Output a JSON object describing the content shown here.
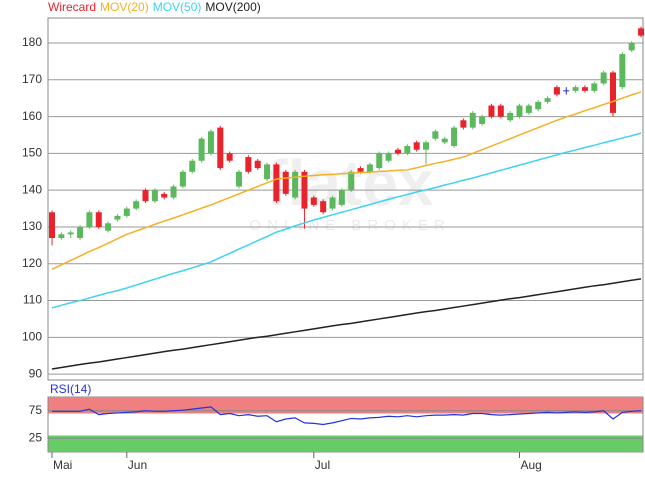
{
  "chart_data": [
    {
      "type": "candlestick",
      "categories": [
        "Mai",
        null,
        null,
        null,
        null,
        null,
        null,
        null,
        "Jun",
        null,
        null,
        null,
        null,
        null,
        null,
        null,
        null,
        null,
        null,
        null,
        null,
        null,
        null,
        null,
        null,
        null,
        null,
        null,
        "Jul",
        null,
        null,
        null,
        null,
        null,
        null,
        null,
        null,
        null,
        null,
        null,
        null,
        null,
        null,
        null,
        null,
        null,
        null,
        null,
        null,
        null,
        "Aug",
        null,
        null,
        null,
        null,
        null,
        null,
        null,
        null,
        null,
        null,
        null,
        null,
        null
      ],
      "series": [
        {
          "name": "Wirecard",
          "type": "candlestick",
          "up_color": "#5cb85c",
          "down_color": "#e8232b",
          "doji_color": "#2a2ad0",
          "open": [
            134,
            127,
            128,
            127,
            130,
            134,
            129,
            132,
            133,
            135,
            140,
            137,
            139,
            138,
            141,
            145,
            148,
            150,
            157,
            150,
            141,
            149,
            148,
            143,
            147,
            145,
            138,
            145,
            138,
            137,
            135,
            136,
            140,
            146,
            145,
            146,
            148,
            151,
            150,
            153,
            151,
            154,
            153,
            152,
            159,
            157,
            158,
            163,
            163,
            159,
            160,
            161,
            162,
            164,
            168,
            167,
            167,
            168,
            167,
            169,
            172,
            168,
            178,
            184
          ],
          "high": [
            134.5,
            128.5,
            129,
            130.5,
            134.5,
            134.5,
            131.5,
            133.5,
            135.5,
            137.5,
            140.5,
            140.5,
            139.5,
            141.5,
            145.5,
            148.5,
            154.5,
            156.5,
            157.5,
            150.5,
            145.5,
            149.5,
            148.5,
            147.5,
            147.5,
            145.5,
            145.5,
            145.5,
            138.5,
            137.5,
            138.5,
            140.5,
            145.5,
            146.5,
            147.5,
            150.5,
            150.5,
            151.5,
            152.5,
            153.5,
            153.5,
            156.5,
            154.5,
            157.5,
            159.5,
            161.5,
            160.5,
            163.5,
            163.5,
            161.5,
            163.5,
            163.5,
            164.5,
            165.5,
            168.5,
            168,
            168.5,
            168.5,
            169.5,
            172.5,
            172.5,
            177.5,
            180.5,
            184.5
          ],
          "low": [
            125,
            126.5,
            127,
            126.5,
            129.5,
            129.5,
            128.5,
            131.5,
            132.5,
            134.5,
            136.5,
            136.5,
            137.5,
            137.5,
            140.5,
            144.5,
            147.5,
            149.5,
            145.5,
            147.5,
            140.5,
            144.5,
            145.5,
            142.5,
            136.5,
            138.5,
            137.5,
            129.5,
            135.5,
            133.5,
            134.5,
            135.5,
            139.5,
            144.5,
            144.5,
            145.5,
            147.5,
            149.5,
            149.5,
            150.5,
            147,
            153.5,
            152.5,
            151.5,
            156.5,
            156.5,
            157.5,
            159.5,
            159.5,
            158.5,
            159.5,
            160.5,
            161.5,
            163.5,
            165.5,
            166,
            166.5,
            166.5,
            166.5,
            168.5,
            160,
            167.5,
            177.5,
            181.5
          ],
          "close": [
            127,
            128,
            128.5,
            130,
            134,
            130,
            131,
            133,
            135,
            137,
            137,
            140,
            138,
            141,
            145,
            148,
            154,
            156,
            146,
            148,
            145,
            145,
            146,
            147,
            137,
            139,
            145,
            135,
            136,
            134,
            138,
            140,
            145,
            145,
            147,
            150,
            150,
            150,
            152,
            151,
            153,
            156,
            154,
            157,
            157,
            161,
            160,
            160,
            160,
            161,
            163,
            163,
            164,
            165,
            166,
            167,
            168,
            167,
            169,
            172,
            161,
            177,
            180,
            182
          ]
        },
        {
          "name": "MOV(20)",
          "color": "#f5b027",
          "values": [
            118.5,
            119.7,
            120.9,
            122.1,
            123.3,
            124.4,
            125.6,
            126.8,
            128,
            128.9,
            129.8,
            130.7,
            131.6,
            132.4,
            133.3,
            134.2,
            135.1,
            136,
            137,
            138,
            139,
            140,
            141,
            142,
            143,
            143.3,
            143.5,
            143.8,
            144,
            144.2,
            144.3,
            144.5,
            144.6,
            144.8,
            144.9,
            145.1,
            145.2,
            145.4,
            145.5,
            146.1,
            146.7,
            147.3,
            147.8,
            148.4,
            149,
            150,
            151,
            152,
            153,
            154,
            155,
            156,
            157,
            158,
            159,
            159.9,
            160.7,
            161.6,
            162.4,
            163.3,
            164.1,
            165,
            165.9,
            166.7
          ]
        },
        {
          "name": "MOV(50)",
          "color": "#3fd3f0",
          "values": [
            108,
            108.7,
            109.4,
            110,
            110.7,
            111.4,
            112.1,
            112.7,
            113.4,
            114.2,
            115,
            115.8,
            116.6,
            117.4,
            118.1,
            118.9,
            119.7,
            120.5,
            121.7,
            122.8,
            124,
            125.1,
            126.3,
            127.4,
            128.6,
            129.4,
            130.3,
            131.1,
            131.9,
            132.6,
            133.3,
            134,
            134.7,
            135.4,
            136.1,
            136.8,
            137.5,
            138.2,
            138.8,
            139.5,
            140.1,
            140.7,
            141.4,
            142,
            142.7,
            143.3,
            144,
            144.7,
            145.4,
            146.1,
            146.8,
            147.5,
            148.2,
            148.9,
            149.6,
            150.3,
            150.9,
            151.6,
            152.2,
            152.9,
            153.5,
            154.2,
            154.8,
            155.5
          ]
        },
        {
          "name": "MOV(200)",
          "color": "#222222",
          "values": [
            91.4,
            91.8,
            92.2,
            92.6,
            93.0,
            93.3,
            93.7,
            94.1,
            94.5,
            94.9,
            95.3,
            95.7,
            96.1,
            96.5,
            96.8,
            97.2,
            97.6,
            98.0,
            98.4,
            98.8,
            99.2,
            99.6,
            100.0,
            100.3,
            100.7,
            101.1,
            101.5,
            101.9,
            102.3,
            102.7,
            103.1,
            103.5,
            103.8,
            104.2,
            104.6,
            105.0,
            105.4,
            105.8,
            106.2,
            106.6,
            107.0,
            107.3,
            107.7,
            108.1,
            108.5,
            108.9,
            109.3,
            109.7,
            110.1,
            110.5,
            110.8,
            111.2,
            111.6,
            112.0,
            112.4,
            112.8,
            113.2,
            113.6,
            114.0,
            114.3,
            114.7,
            115.1,
            115.5,
            115.9
          ]
        }
      ],
      "ylim": [
        88.4,
        186.8
      ],
      "yticks": [
        90,
        100,
        110,
        120,
        130,
        140,
        150,
        160,
        170,
        180
      ],
      "grid": true,
      "watermark": "flatex",
      "watermark_sub": "ONLINE BROKER"
    },
    {
      "type": "line",
      "title": "RSI(14)",
      "color": "#2233dd",
      "values": [
        74,
        74,
        74,
        74,
        78,
        68,
        70,
        71,
        72,
        73,
        75,
        74,
        74,
        75,
        76,
        78,
        80,
        82,
        68,
        70,
        66,
        68,
        65,
        66,
        55,
        60,
        62,
        53,
        52,
        50,
        53,
        57,
        61,
        60,
        62,
        63,
        65,
        64,
        66,
        64,
        66,
        67,
        67,
        68,
        67,
        70,
        70,
        68,
        67,
        68,
        69,
        70,
        71,
        72,
        71,
        72,
        73,
        72,
        73,
        75,
        60,
        72,
        74,
        75
      ],
      "ylim": [
        0,
        100
      ],
      "yticks": [
        25,
        75
      ],
      "grid": true,
      "bands": [
        {
          "from": 70,
          "to": 100,
          "color": "#f08080"
        },
        {
          "from": 0,
          "to": 30,
          "color": "#66cc66"
        }
      ]
    }
  ]
}
